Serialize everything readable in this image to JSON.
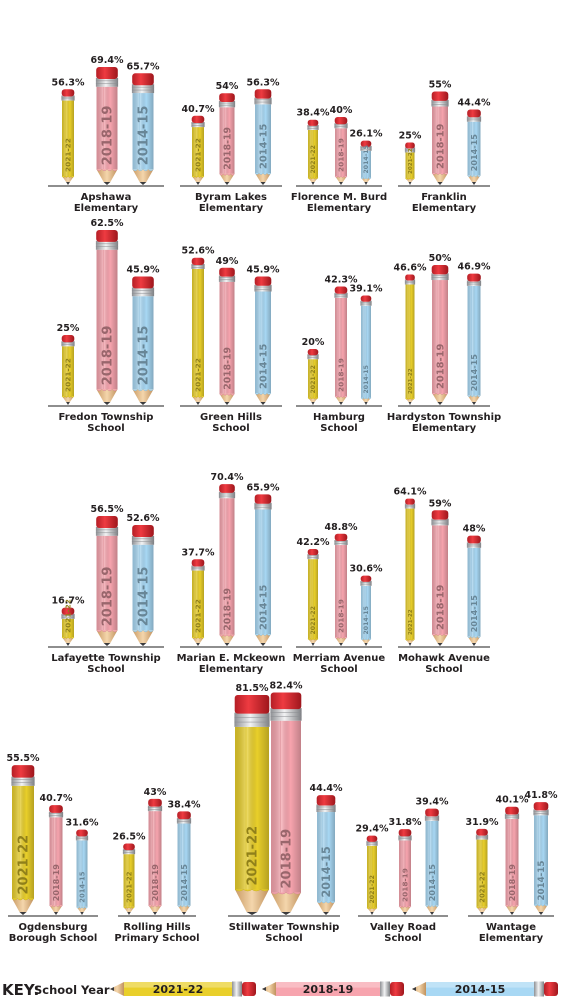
{
  "chart_data": {
    "type": "bar",
    "style": "pencil-bars",
    "series": [
      {
        "name": "2021-22",
        "color": "#e9cf2a"
      },
      {
        "name": "2018-19",
        "color": "#f7a4ae"
      },
      {
        "name": "2014-15",
        "color": "#a8d8f4"
      }
    ],
    "value_suffix": "%",
    "schools": [
      {
        "name": [
          "Apshawa",
          "Elementary"
        ],
        "values": [
          56.3,
          69.4,
          65.7
        ]
      },
      {
        "name": [
          "Byram Lakes",
          "Elementary"
        ],
        "values": [
          40.7,
          54,
          56.3
        ]
      },
      {
        "name": [
          "Florence M. Burd",
          "Elementary"
        ],
        "values": [
          38.4,
          40,
          26.1
        ]
      },
      {
        "name": [
          "Franklin",
          "Elementary"
        ],
        "values": [
          25,
          55,
          44.4
        ]
      },
      {
        "name": [
          "Fredon Township",
          "School"
        ],
        "values": [
          25,
          62.5,
          45.9
        ]
      },
      {
        "name": [
          "Green Hills",
          "School"
        ],
        "values": [
          52.6,
          49,
          45.9
        ]
      },
      {
        "name": [
          "Hamburg",
          "School"
        ],
        "values": [
          20,
          42.3,
          39.1
        ]
      },
      {
        "name": [
          "Hardyston Township",
          "Elementary"
        ],
        "values": [
          46.6,
          50,
          46.9
        ]
      },
      {
        "name": [
          "Lafayette Township",
          "School"
        ],
        "values": [
          16.7,
          56.5,
          52.6
        ]
      },
      {
        "name": [
          "Marian E. Mckeown",
          "Elementary"
        ],
        "values": [
          37.7,
          70.4,
          65.9
        ]
      },
      {
        "name": [
          "Merriam Avenue",
          "School"
        ],
        "values": [
          42.2,
          48.8,
          30.6
        ]
      },
      {
        "name": [
          "Mohawk Avenue",
          "School"
        ],
        "values": [
          64.1,
          59,
          48
        ]
      },
      {
        "name": [
          "Ogdensburg",
          "Borough School"
        ],
        "values": [
          55.5,
          40.7,
          31.6
        ]
      },
      {
        "name": [
          "Rolling Hills",
          "Primary School"
        ],
        "values": [
          26.5,
          43,
          38.4
        ]
      },
      {
        "name": [
          "Stillwater Township",
          "School"
        ],
        "values": [
          81.5,
          82.4,
          44.4
        ]
      },
      {
        "name": [
          "Valley Road",
          "School"
        ],
        "values": [
          29.4,
          31.8,
          39.4
        ]
      },
      {
        "name": [
          "Wantage",
          "Elementary"
        ],
        "values": [
          31.9,
          40.1,
          41.8
        ]
      }
    ]
  },
  "key": {
    "title": "KEY:",
    "subtitle": "School Year",
    "items": [
      "2021-22",
      "2018-19",
      "2014-15"
    ]
  }
}
